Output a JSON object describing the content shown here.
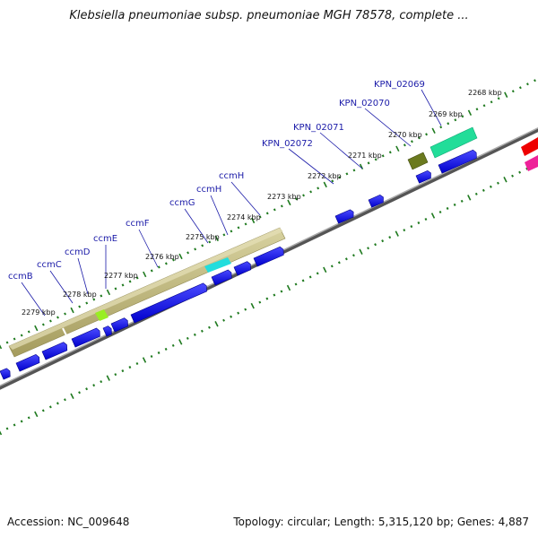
{
  "title": "Klebsiella pneumoniae subsp. pneumoniae MGH 78578, complete ...",
  "footer": {
    "accession": "Accession: NC_009648",
    "topology": "Topology: circular; Length: 5,315,120 bp; Genes: 4,887"
  },
  "kbp_labels": [
    "2268 kbp",
    "2269 kbp",
    "2270 kbp",
    "2271 kbp",
    "2272 kbp",
    "2273 kbp",
    "2274 kbp",
    "2275 kbp",
    "2276 kbp",
    "2277 kbp",
    "2278 kbp",
    "2279 kbp"
  ],
  "gene_labels": [
    "KPN_02069",
    "KPN_02070",
    "KPN_02071",
    "KPN_02072",
    "ccmH",
    "ccmH",
    "ccmG",
    "ccmF",
    "ccmE",
    "ccmD",
    "ccmC",
    "ccmB"
  ],
  "colors": {
    "forward_gene": "#0000ee",
    "operon_bar": "#bdb57a",
    "backbone": "#888888",
    "tick": "#1f7a1f",
    "label": "#1a1aa8",
    "highlight_cyan": "#22dddd",
    "highlight_lime": "#99ee22",
    "highlight_olive": "#6b7a1f",
    "highlight_teal": "#22dd99",
    "offscreen_red": "#ee0000",
    "offscreen_pink": "#ee2299"
  }
}
